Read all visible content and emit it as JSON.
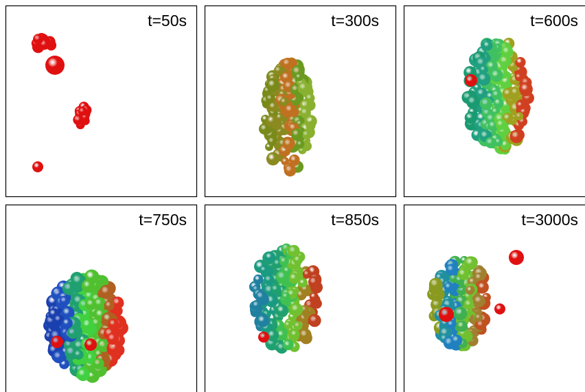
{
  "panels": [
    {
      "label": "t=50s"
    },
    {
      "label": "t=300s"
    },
    {
      "label": "t=600s"
    },
    {
      "label": "t=750s"
    },
    {
      "label": "t=850s"
    },
    {
      "label": "t=3000s"
    }
  ]
}
